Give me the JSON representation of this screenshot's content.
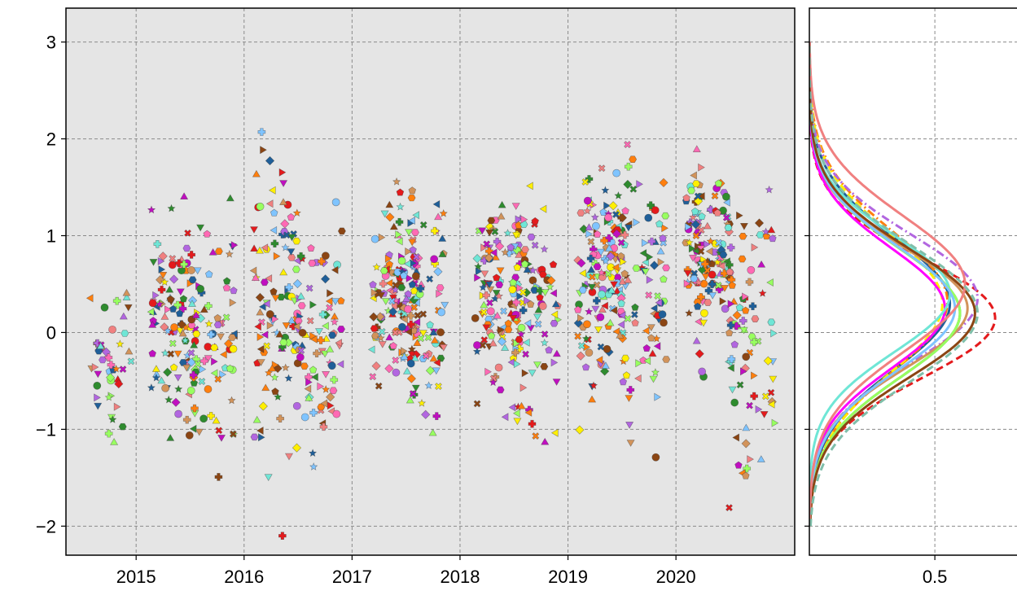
{
  "chart_data": [
    {
      "type": "scatter",
      "panel": "main",
      "title": "",
      "xlabel": "",
      "ylabel": "",
      "background": "#e5e5e5",
      "grid": true,
      "xlim": [
        2014.35,
        2021.1
      ],
      "ylim": [
        -2.3,
        3.35
      ],
      "x_ticks": [
        2015,
        2016,
        2017,
        2018,
        2019,
        2020
      ],
      "x_tick_labels": [
        "2015",
        "2016",
        "2017",
        "2018",
        "2019",
        "2020"
      ],
      "y_ticks": [
        3,
        2,
        1,
        0,
        -1,
        -2
      ],
      "y_tick_labels": [
        "3",
        "2",
        "1",
        "0",
        "−1",
        "−2"
      ],
      "marker_colors": [
        "#1f5f99",
        "#ff7f0e",
        "#ffef00",
        "#e41a1c",
        "#b266e0",
        "#d2935a",
        "#2e8b2e",
        "#ff69b4",
        "#6fe6d6",
        "#98ff60",
        "#7fc4ff",
        "#c00fc0",
        "#8b4513",
        "#f08080"
      ],
      "seasons": [
        {
          "x_center": 2014.75,
          "mean": -0.3,
          "sd": 0.45,
          "count": 45
        },
        {
          "x_center": 2015.35,
          "mean": 0.1,
          "sd": 0.55,
          "count": 110
        },
        {
          "x_center": 2015.72,
          "mean": 0.1,
          "sd": 0.55,
          "count": 70
        },
        {
          "x_center": 2016.3,
          "mean": 0.2,
          "sd": 0.7,
          "count": 110
        },
        {
          "x_center": 2016.7,
          "mean": 0.0,
          "sd": 0.55,
          "count": 80
        },
        {
          "x_center": 2017.4,
          "mean": 0.3,
          "sd": 0.45,
          "count": 130
        },
        {
          "x_center": 2017.65,
          "mean": 0.2,
          "sd": 0.55,
          "count": 80
        },
        {
          "x_center": 2018.35,
          "mean": 0.35,
          "sd": 0.5,
          "count": 120
        },
        {
          "x_center": 2018.7,
          "mean": 0.2,
          "sd": 0.6,
          "count": 90
        },
        {
          "x_center": 2019.3,
          "mean": 0.55,
          "sd": 0.55,
          "count": 140
        },
        {
          "x_center": 2019.7,
          "mean": 0.45,
          "sd": 0.65,
          "count": 90
        },
        {
          "x_center": 2020.3,
          "mean": 0.8,
          "sd": 0.4,
          "count": 140
        },
        {
          "x_center": 2020.7,
          "mean": 0.0,
          "sd": 0.7,
          "count": 80
        }
      ]
    },
    {
      "type": "line",
      "panel": "density",
      "title": "",
      "orientation": "horizontal",
      "grid": true,
      "xlim": [
        0.0,
        0.85
      ],
      "ylim": [
        -2.3,
        3.35
      ],
      "x_ticks": [
        0.5
      ],
      "x_tick_labels": [
        "0.5"
      ],
      "series": [
        {
          "color": "#1f5f99",
          "style": "solid",
          "mean": 0.3,
          "sd": 0.68,
          "peak": 0.56
        },
        {
          "color": "#ff7f0e",
          "style": "dashdot",
          "mean": 0.32,
          "sd": 0.72,
          "peak": 0.55
        },
        {
          "color": "#ffef00",
          "style": "dashed",
          "mean": 0.3,
          "sd": 0.72,
          "peak": 0.53
        },
        {
          "color": "#e41a1c",
          "style": "dashed",
          "mean": 0.15,
          "sd": 0.62,
          "peak": 0.74
        },
        {
          "color": "#b266e0",
          "style": "dashdot",
          "mean": 0.35,
          "sd": 0.66,
          "peak": 0.67
        },
        {
          "color": "#d2935a",
          "style": "solid",
          "mean": 0.25,
          "sd": 0.62,
          "peak": 0.63
        },
        {
          "color": "#2e8b2e",
          "style": "solid",
          "mean": 0.2,
          "sd": 0.66,
          "peak": 0.6
        },
        {
          "color": "#ff00ff",
          "style": "solid",
          "mean": 0.25,
          "sd": 0.62,
          "peak": 0.54
        },
        {
          "color": "#6fe6d6",
          "style": "solid",
          "mean": 0.4,
          "sd": 0.6,
          "peak": 0.56
        },
        {
          "color": "#98ff60",
          "style": "solid",
          "mean": 0.2,
          "sd": 0.66,
          "peak": 0.6
        },
        {
          "color": "#7fc4ff",
          "style": "solid",
          "mean": 0.25,
          "sd": 0.64,
          "peak": 0.58
        },
        {
          "color": "#8b4513",
          "style": "solid",
          "mean": 0.2,
          "sd": 0.66,
          "peak": 0.66
        },
        {
          "color": "#f08080",
          "style": "solid",
          "mean": 0.5,
          "sd": 0.7,
          "peak": 0.62
        },
        {
          "color": "#7fbfaa",
          "style": "dashed",
          "mean": 0.2,
          "sd": 0.7,
          "peak": 0.67
        }
      ]
    }
  ]
}
